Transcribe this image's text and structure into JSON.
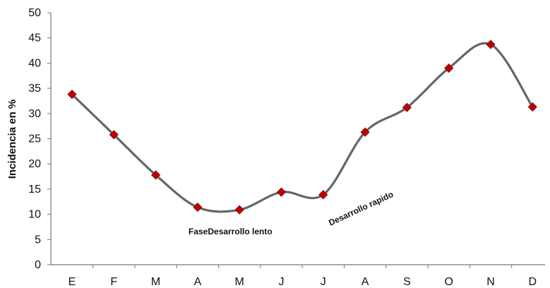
{
  "chart_data": {
    "type": "line",
    "categories": [
      "E",
      "F",
      "M",
      "A",
      "M",
      "J",
      "J",
      "A",
      "S",
      "O",
      "N",
      "D"
    ],
    "values": [
      33.8,
      25.8,
      17.8,
      11.4,
      10.9,
      14.4,
      13.9,
      26.3,
      31.2,
      39.0,
      43.7,
      31.3
    ],
    "ylabel": "Incidencia en %",
    "ylim": [
      0,
      50
    ],
    "yticks": [
      0,
      5,
      10,
      15,
      20,
      25,
      30,
      35,
      40,
      45,
      50
    ],
    "grid": false,
    "line_color": "#666666",
    "marker_color": "#c00000",
    "marker": "diamond",
    "annotations": [
      {
        "text": "FaseDesarrollo lento"
      },
      {
        "text": "Desarrollo rapido"
      }
    ]
  }
}
